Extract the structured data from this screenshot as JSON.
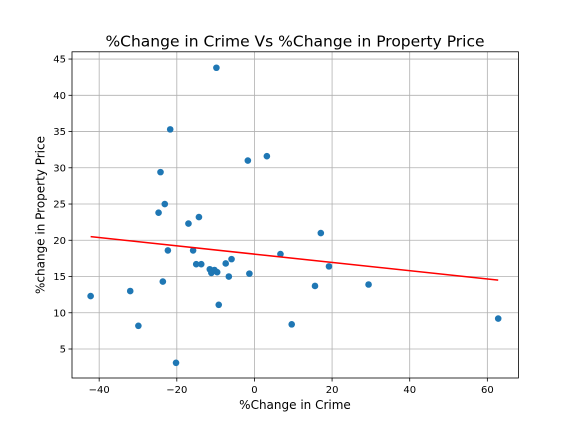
{
  "chart_data": {
    "type": "scatter",
    "title": "%Change in Crime Vs %Change in Property Price",
    "xlabel": "%Change in Crime",
    "ylabel": "%change in Property Price",
    "xlim": [
      -47,
      68
    ],
    "ylim": [
      1,
      46
    ],
    "xticks": [
      -40,
      -20,
      0,
      20,
      40,
      60
    ],
    "yticks": [
      5,
      10,
      15,
      20,
      25,
      30,
      35,
      40,
      45
    ],
    "grid": true,
    "point_color": "#1f77b4",
    "line_color": "#ff0000",
    "points": [
      {
        "x": -42.2,
        "y": 12.3
      },
      {
        "x": -32.0,
        "y": 13.0
      },
      {
        "x": -29.9,
        "y": 8.2
      },
      {
        "x": -24.7,
        "y": 23.8
      },
      {
        "x": -24.2,
        "y": 29.4
      },
      {
        "x": -23.6,
        "y": 14.3
      },
      {
        "x": -23.1,
        "y": 25.0
      },
      {
        "x": -22.3,
        "y": 18.6
      },
      {
        "x": -21.7,
        "y": 35.3
      },
      {
        "x": -20.2,
        "y": 3.1
      },
      {
        "x": -17.0,
        "y": 22.3
      },
      {
        "x": -15.8,
        "y": 18.6
      },
      {
        "x": -15.0,
        "y": 16.7
      },
      {
        "x": -14.3,
        "y": 23.2
      },
      {
        "x": -13.7,
        "y": 16.7
      },
      {
        "x": -11.5,
        "y": 16.0
      },
      {
        "x": -11.1,
        "y": 15.5
      },
      {
        "x": -10.3,
        "y": 15.9
      },
      {
        "x": -9.8,
        "y": 43.8
      },
      {
        "x": -9.6,
        "y": 15.6
      },
      {
        "x": -9.2,
        "y": 11.1
      },
      {
        "x": -7.4,
        "y": 16.8
      },
      {
        "x": -6.6,
        "y": 15.0
      },
      {
        "x": -5.9,
        "y": 17.4
      },
      {
        "x": -1.7,
        "y": 31.0
      },
      {
        "x": -1.3,
        "y": 15.4
      },
      {
        "x": 3.2,
        "y": 31.6
      },
      {
        "x": 6.7,
        "y": 18.1
      },
      {
        "x": 9.6,
        "y": 8.4
      },
      {
        "x": 15.6,
        "y": 13.7
      },
      {
        "x": 17.1,
        "y": 21.0
      },
      {
        "x": 19.2,
        "y": 16.4
      },
      {
        "x": 29.4,
        "y": 13.9
      },
      {
        "x": 62.8,
        "y": 9.2
      }
    ],
    "regression_line": {
      "x": [
        -42.2,
        62.8
      ],
      "y": [
        20.5,
        14.5
      ]
    }
  }
}
